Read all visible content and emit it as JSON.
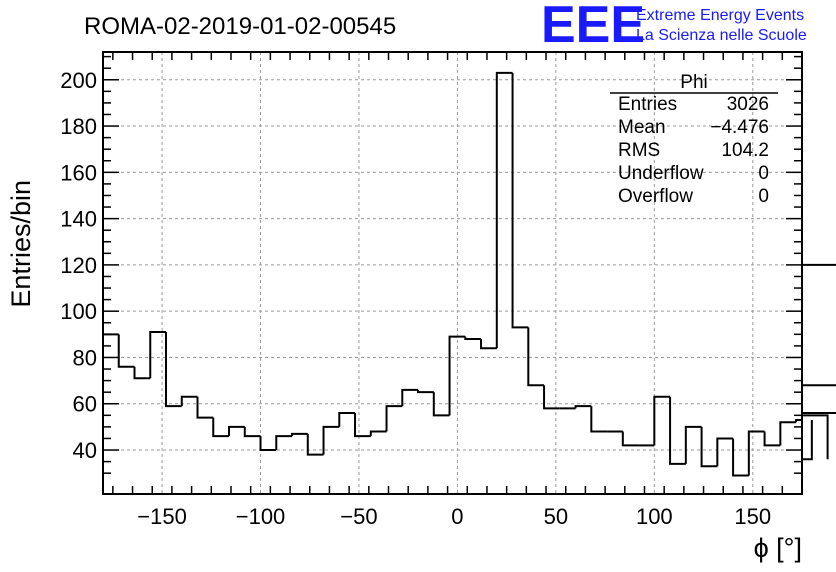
{
  "header": {
    "run_title": "ROMA-02-2019-01-02-00545",
    "logo": {
      "mark": "EEE",
      "line1": "Extreme Energy Events",
      "line2": "La Scienza nelle Scuole",
      "color": "#1a1aff"
    }
  },
  "stats_box": {
    "title": "Phi",
    "rows": [
      {
        "label": "Entries",
        "value": "3026"
      },
      {
        "label": "Mean",
        "value": "−4.476"
      },
      {
        "label": "RMS",
        "value": "104.2"
      },
      {
        "label": "Underflow",
        "value": "0"
      },
      {
        "label": "Overflow",
        "value": "0"
      }
    ]
  },
  "chart_data": {
    "type": "histogram",
    "title": "ROMA-02-2019-01-02-00545",
    "xlabel": "ϕ [°]",
    "ylabel": "Entries/bin",
    "xlim": [
      -180,
      175
    ],
    "ylim": [
      21,
      212
    ],
    "bin_width": 8,
    "bin_edges_start": -180,
    "x_ticks": [
      -150,
      -100,
      -50,
      0,
      50,
      100,
      150
    ],
    "x_tick_labels": [
      "−150",
      "−100",
      "−50",
      "0",
      "50",
      "100",
      "150"
    ],
    "y_ticks": [
      40,
      60,
      80,
      100,
      120,
      140,
      160,
      180,
      200
    ],
    "y_tick_labels": [
      "40",
      "60",
      "80",
      "100",
      "120",
      "140",
      "160",
      "180",
      "200"
    ],
    "values": [
      90,
      76,
      71,
      91,
      59,
      63,
      54,
      46,
      50,
      46,
      40,
      46,
      47,
      38,
      50,
      56,
      46,
      48,
      59,
      66,
      65,
      55,
      89,
      88,
      84,
      203,
      93,
      68,
      58,
      58,
      59,
      48,
      48,
      42,
      42,
      63,
      34,
      50,
      33,
      45,
      29,
      48,
      42,
      52,
      53,
      36,
      55,
      56,
      68,
      120
    ],
    "grid": true,
    "line_color": "#000000",
    "legend": "none"
  }
}
